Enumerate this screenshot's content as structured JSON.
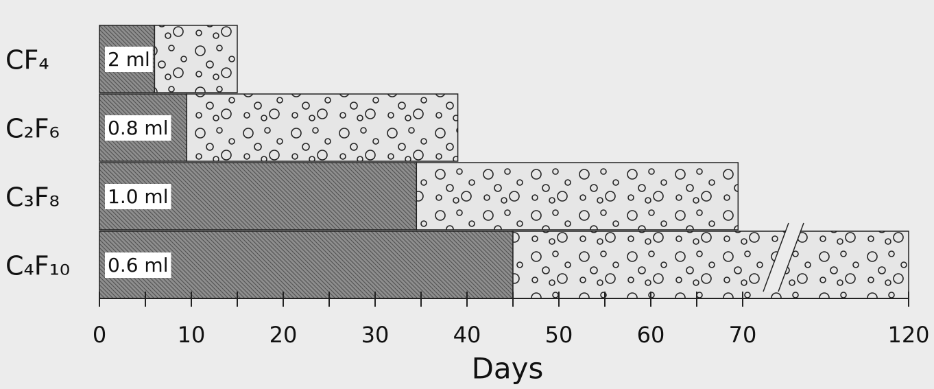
{
  "chart_data": {
    "type": "barh",
    "stacked": true,
    "categories": [
      "CF₄",
      "C₂F₆",
      "C₃F₈",
      "C₄F₁₀"
    ],
    "series": [
      {
        "color": "#8e8e8e",
        "values": [
          6,
          9.5,
          34.5,
          45
        ]
      },
      {
        "color": "#e6e6e6",
        "values": [
          9,
          29.5,
          35,
          75
        ]
      }
    ],
    "bar_labels": [
      "2 ml",
      "0.8 ml",
      "1.0 ml",
      "0.6 ml"
    ],
    "xlabel": "Days",
    "xlim": [
      0,
      120
    ],
    "xticks": [
      0,
      10,
      20,
      30,
      40,
      50,
      60,
      70,
      120
    ],
    "xminor_ticks": [
      5,
      15,
      25,
      35,
      45,
      55,
      65
    ],
    "axis_break": true
  }
}
